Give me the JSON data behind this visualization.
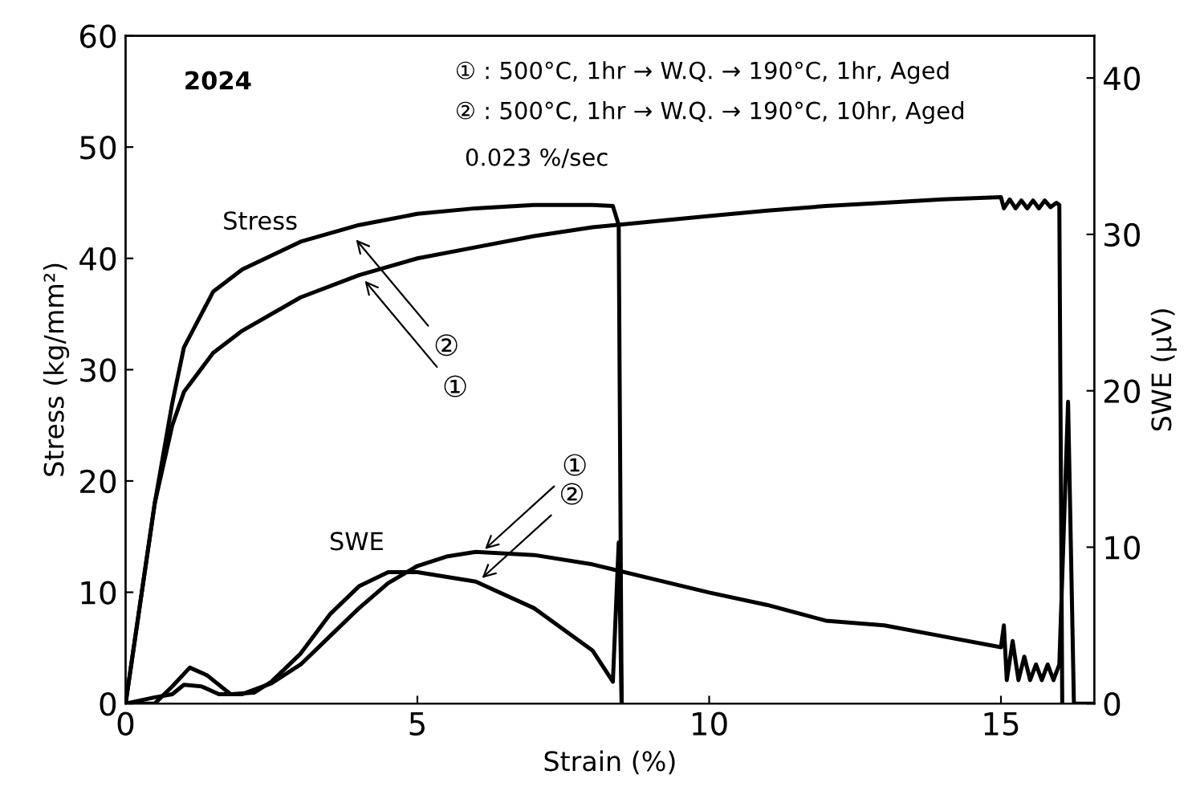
{
  "chart_data": {
    "type": "line",
    "xlabel": "Strain (%)",
    "ylabel": "Stress (kg/mm²)",
    "y2label": "SWE (μV)",
    "xlim": [
      0,
      16.6
    ],
    "xticks": [
      0,
      5,
      10,
      15
    ],
    "ylim": [
      0,
      60
    ],
    "yticks": [
      0,
      10,
      20,
      30,
      40,
      50,
      60
    ],
    "y2lim": [
      0,
      42.7
    ],
    "y2ticks": [
      0,
      10,
      20,
      30,
      40
    ],
    "grid": false,
    "legend": false,
    "line_style": "solid",
    "marker": "none",
    "series": [
      {
        "color": "#000000",
        "x": [
          0,
          0.5,
          0.8,
          1.0,
          1.5,
          2,
          3,
          4,
          5,
          6,
          7,
          8,
          8.35,
          8.45,
          8.5
        ],
        "values": [
          0,
          18,
          27,
          32,
          37,
          39,
          41.5,
          43,
          44,
          44.5,
          44.8,
          44.8,
          44.7,
          43,
          0
        ]
      },
      {
        "color": "#000000",
        "x": [
          0,
          0.5,
          0.8,
          1,
          1.5,
          2,
          3,
          4,
          5,
          6,
          7,
          8,
          9,
          10,
          11,
          12,
          13,
          14,
          15,
          15.05,
          15.15,
          15.25,
          15.35,
          15.45,
          15.55,
          15.65,
          15.75,
          15.85,
          15.95,
          16.0,
          16.05
        ],
        "values": [
          0,
          18,
          25,
          28,
          31.5,
          33.5,
          36.5,
          38.5,
          40,
          41,
          42,
          42.8,
          43.3,
          43.8,
          44.3,
          44.7,
          45,
          45.3,
          45.5,
          44.5,
          45.3,
          44.5,
          45.2,
          44.5,
          45.2,
          44.5,
          45.2,
          44.6,
          45,
          44.8,
          0
        ]
      },
      {
        "axis": "y2",
        "color": "#000000",
        "x": [
          0,
          0.5,
          0.8,
          1.0,
          1.3,
          1.6,
          2.0,
          2.5,
          3,
          3.5,
          4,
          4.5,
          5,
          5.5,
          6,
          7,
          8,
          9,
          10,
          11,
          12,
          13,
          14,
          15,
          15.05,
          15.1,
          15.2,
          15.3,
          15.4,
          15.5,
          15.6,
          15.7,
          15.8,
          15.9,
          16.0,
          16.15,
          16.25,
          16.6
        ],
        "values": [
          0,
          0.4,
          0.6,
          1.2,
          1.1,
          0.6,
          0.6,
          1.3,
          2.5,
          4.3,
          6.1,
          7.7,
          8.8,
          9.4,
          9.7,
          9.5,
          8.9,
          8.0,
          7.1,
          6.3,
          5.3,
          5.0,
          4.3,
          3.6,
          5.0,
          1.5,
          4.0,
          1.5,
          3.0,
          1.5,
          2.5,
          1.5,
          2.5,
          1.5,
          2.5,
          19.3,
          0,
          0
        ]
      },
      {
        "axis": "y2",
        "color": "#000000",
        "x": [
          0,
          0.5,
          0.8,
          1.1,
          1.4,
          1.8,
          2.2,
          2.5,
          3,
          3.5,
          4,
          4.5,
          5,
          6,
          7,
          8,
          8.35,
          8.45,
          8.5
        ],
        "values": [
          0,
          0,
          1.1,
          2.3,
          1.8,
          0.6,
          0.7,
          1.4,
          3.2,
          5.7,
          7.5,
          8.4,
          8.4,
          7.8,
          6.1,
          3.4,
          1.4,
          10.3,
          0
        ]
      }
    ],
    "annotations": [
      "2024",
      "① : 500°C, 1hr → W.Q. → 190°C, 1hr, Aged",
      "② : 500°C, 1hr → W.Q. → 190°C, 10hr, Aged",
      "0.023 %/sec",
      "Stress",
      "SWE",
      {
        "text": "②",
        "x": 3.9,
        "y": 42
      },
      {
        "text": "①",
        "x": 4.05,
        "y": 38.3
      },
      {
        "text": "①",
        "x": 6.1,
        "y": 13.6
      },
      {
        "text": "②",
        "x": 6.05,
        "y": 11
      }
    ]
  }
}
